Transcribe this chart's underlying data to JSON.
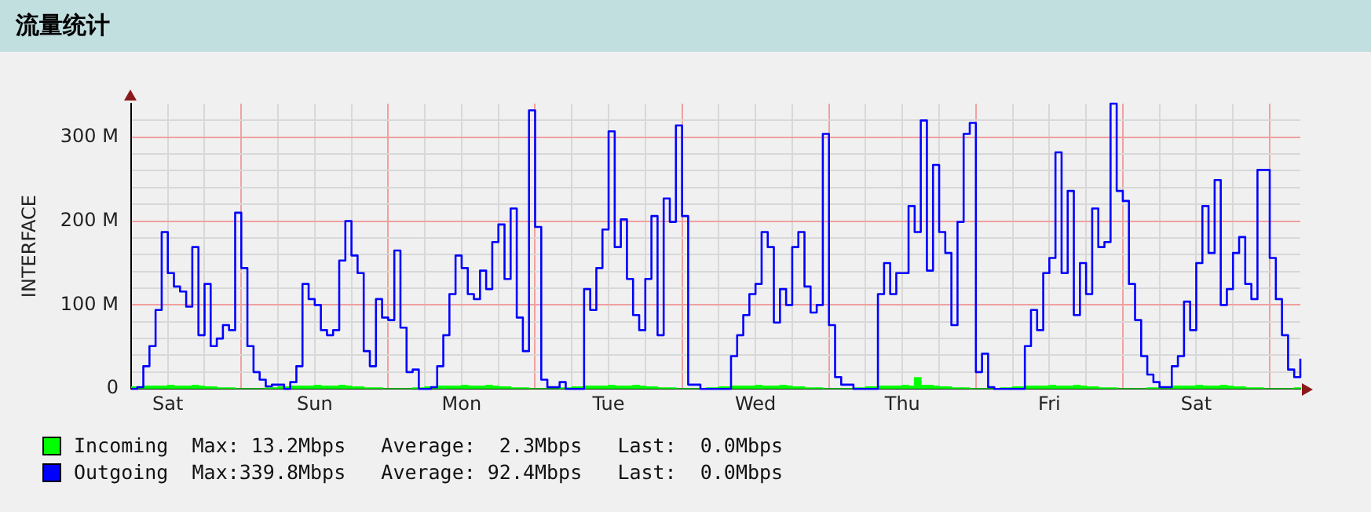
{
  "chart_data": {
    "type": "line",
    "title": "流量统计",
    "ylabel": "INTERFACE",
    "ylim": [
      0,
      340
    ],
    "categories": [
      null,
      null,
      null,
      null,
      null,
      null,
      "Sat",
      null,
      null,
      null,
      null,
      null,
      null,
      null,
      null,
      null,
      null,
      null,
      null,
      null,
      null,
      null,
      null,
      null,
      null,
      null,
      null,
      null,
      null,
      null,
      "Sun",
      null,
      null,
      null,
      null,
      null,
      null,
      null,
      null,
      null,
      null,
      null,
      null,
      null,
      null,
      null,
      null,
      null,
      null,
      null,
      null,
      null,
      null,
      null,
      "Mon",
      null,
      null,
      null,
      null,
      null,
      null,
      null,
      null,
      null,
      null,
      null,
      null,
      null,
      null,
      null,
      null,
      null,
      null,
      null,
      null,
      null,
      null,
      null,
      "Tue",
      null,
      null,
      null,
      null,
      null,
      null,
      null,
      null,
      null,
      null,
      null,
      null,
      null,
      null,
      null,
      null,
      null,
      null,
      null,
      null,
      null,
      null,
      null,
      "Wed",
      null,
      null,
      null,
      null,
      null,
      null,
      null,
      null,
      null,
      null,
      null,
      null,
      null,
      null,
      null,
      null,
      null,
      null,
      null,
      null,
      null,
      null,
      null,
      "Thu",
      null,
      null,
      null,
      null,
      null,
      null,
      null,
      null,
      null,
      null,
      null,
      null,
      null,
      null,
      null,
      null,
      null,
      null,
      null,
      null,
      null,
      null,
      null,
      "Fri",
      null,
      null,
      null,
      null,
      null,
      null,
      null,
      null,
      null,
      null,
      null,
      null,
      null,
      null,
      null,
      null,
      null,
      null,
      null,
      null,
      null,
      null,
      null,
      "Sat",
      null,
      null,
      null,
      null,
      null,
      null,
      null,
      null,
      null,
      null,
      null,
      null,
      null,
      null,
      null,
      null,
      null
    ],
    "yticks": [
      0,
      {
        "value": 20,
        "label": null
      },
      {
        "value": 40,
        "label": null
      },
      {
        "value": 60,
        "label": null
      },
      {
        "value": 80,
        "label": null
      },
      {
        "value": 100,
        "label": "100 M"
      },
      {
        "value": 120,
        "label": null
      },
      {
        "value": 140,
        "label": null
      },
      {
        "value": 160,
        "label": null
      },
      {
        "value": 180,
        "label": null
      },
      {
        "value": 200,
        "label": "200 M"
      },
      {
        "value": 220,
        "label": null
      },
      {
        "value": 240,
        "label": null
      },
      {
        "value": 260,
        "label": null
      },
      {
        "value": 280,
        "label": null
      },
      {
        "value": 300,
        "label": "300 M"
      },
      {
        "value": 320,
        "label": null
      }
    ],
    "grid": true,
    "legend": "bottom",
    "annotations": [
      "Max: 13.2Mbps   Average:  2.3Mbps   Last:  0.0Mbps",
      "Max:339.8Mbps   Average: 92.4Mbps   Last:  0.0Mbps"
    ],
    "series": [
      {
        "name": "Incoming",
        "type": "area",
        "color": "#00ff00",
        "values": [
          2,
          2,
          3,
          3,
          3,
          3,
          4,
          3,
          3,
          3,
          4,
          3,
          2,
          2,
          1,
          1,
          1,
          0,
          0,
          0,
          0,
          0,
          1,
          1,
          2,
          2,
          3,
          3,
          3,
          3,
          4,
          3,
          3,
          3,
          4,
          3,
          2,
          2,
          1,
          1,
          1,
          0,
          0,
          0,
          0,
          0,
          1,
          1,
          2,
          2,
          3,
          3,
          3,
          3,
          4,
          3,
          3,
          3,
          4,
          3,
          2,
          2,
          1,
          1,
          1,
          0,
          0,
          0,
          0,
          0,
          1,
          1,
          2,
          2,
          3,
          3,
          3,
          3,
          4,
          3,
          3,
          3,
          4,
          3,
          2,
          2,
          1,
          1,
          1,
          0,
          0,
          0,
          0,
          0,
          1,
          1,
          2,
          2,
          3,
          3,
          3,
          3,
          4,
          3,
          3,
          3,
          4,
          3,
          2,
          2,
          1,
          1,
          1,
          0,
          0,
          0,
          0,
          0,
          1,
          1,
          2,
          2,
          3,
          3,
          3,
          3,
          4,
          3,
          13,
          4,
          4,
          3,
          2,
          2,
          1,
          1,
          1,
          0,
          0,
          0,
          0,
          0,
          1,
          1,
          2,
          2,
          3,
          3,
          3,
          3,
          4,
          3,
          3,
          3,
          4,
          3,
          2,
          2,
          1,
          1,
          1,
          0,
          0,
          0,
          0,
          0,
          1,
          1,
          2,
          2,
          3,
          3,
          3,
          3,
          4,
          3,
          3,
          3,
          4,
          3,
          2,
          2,
          1,
          1,
          1,
          0,
          0,
          0,
          0,
          0,
          1,
          0
        ]
      },
      {
        "name": "Outgoing",
        "type": "step",
        "color": "#0000ff",
        "values": [
          0,
          2,
          27,
          51,
          94,
          187,
          138,
          122,
          116,
          98,
          169,
          64,
          125,
          51,
          60,
          76,
          70,
          210,
          144,
          51,
          20,
          11,
          3,
          5,
          5,
          0,
          8,
          27,
          125,
          107,
          100,
          70,
          64,
          70,
          153,
          200,
          159,
          138,
          45,
          27,
          107,
          85,
          82,
          165,
          73,
          20,
          23,
          0,
          0,
          2,
          27,
          64,
          113,
          159,
          144,
          113,
          107,
          141,
          119,
          175,
          196,
          131,
          215,
          85,
          45,
          332,
          193,
          11,
          2,
          2,
          8,
          0,
          0,
          0,
          119,
          94,
          144,
          190,
          307,
          169,
          202,
          131,
          88,
          70,
          131,
          206,
          64,
          227,
          199,
          314,
          206,
          5,
          5,
          0,
          0,
          0,
          0,
          0,
          39,
          64,
          88,
          113,
          125,
          187,
          169,
          79,
          119,
          100,
          169,
          187,
          122,
          91,
          100,
          304,
          76,
          14,
          5,
          5,
          0,
          0,
          0,
          0,
          113,
          150,
          113,
          138,
          138,
          218,
          187,
          320,
          141,
          267,
          187,
          162,
          76,
          199,
          304,
          317,
          20,
          42,
          2,
          0,
          0,
          0,
          0,
          0,
          51,
          94,
          70,
          138,
          156,
          282,
          138,
          236,
          88,
          150,
          113,
          215,
          169,
          175,
          340,
          236,
          224,
          125,
          82,
          39,
          17,
          8,
          2,
          2,
          27,
          39,
          104,
          70,
          150,
          218,
          162,
          249,
          100,
          119,
          162,
          181,
          125,
          107,
          261,
          261,
          156,
          107,
          64,
          23,
          14,
          36
        ]
      }
    ]
  }
}
